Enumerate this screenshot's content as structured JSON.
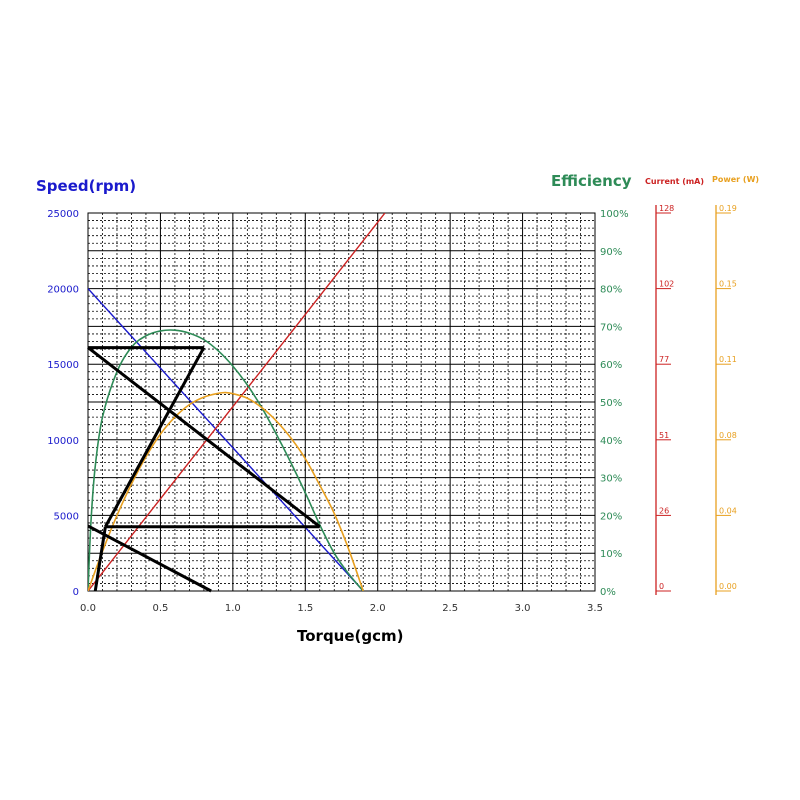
{
  "chart_data": {
    "type": "line",
    "title": "",
    "xlabel": "Torque(gcm)",
    "ylabel_left": "Speed(rpm)",
    "ylabel_efficiency": "Efficiency",
    "ylabel_current": "Current (mA)",
    "ylabel_power": "Power (W)",
    "xlim": [
      0,
      3.5
    ],
    "ylim": [
      0,
      25000
    ],
    "grid": true,
    "x_ticks": [
      "0.0",
      "0.5",
      "1.0",
      "1.5",
      "2.0",
      "2.5",
      "3.0",
      "3.5"
    ],
    "y_ticks_speed": [
      "0",
      "5000",
      "10000",
      "15000",
      "20000",
      "25000"
    ],
    "y_ticks_efficiency": [
      "0%",
      "10%",
      "20%",
      "30%",
      "40%",
      "50%",
      "60%",
      "70%",
      "80%",
      "90%",
      "100%"
    ],
    "y_ticks_current": [
      "0",
      "26",
      "51",
      "77",
      "102",
      "128"
    ],
    "y_ticks_power": [
      "0.00",
      "0.04",
      "0.08",
      "0.11",
      "0.15",
      "0.19"
    ],
    "series": [
      {
        "name": "Speed(rpm)",
        "color": "#1a1acc",
        "x": [
          0,
          1.9
        ],
        "y": [
          20000,
          0
        ]
      },
      {
        "name": "Current (mA)",
        "color": "#cc2222",
        "x": [
          0,
          2.05
        ],
        "y": [
          0,
          25000
        ]
      },
      {
        "name": "Efficiency",
        "color": "#2e8b57",
        "x": [
          0,
          0.02,
          0.05,
          0.1,
          0.2,
          0.3,
          0.4,
          0.5,
          0.6,
          0.7,
          0.8,
          0.9,
          1.0,
          1.1,
          1.2,
          1.3,
          1.4,
          1.5,
          1.6,
          1.7,
          1.8,
          1.9
        ],
        "y_pct": [
          0,
          18,
          33,
          46,
          58,
          64.5,
          67.5,
          68.8,
          69,
          68.2,
          66.5,
          63.5,
          59.5,
          54.5,
          48.5,
          41.5,
          34,
          26,
          17.5,
          10,
          4.5,
          0
        ]
      },
      {
        "name": "Power (W)",
        "color": "#e8a020",
        "x": [
          0,
          0.1,
          0.2,
          0.3,
          0.4,
          0.5,
          0.6,
          0.7,
          0.8,
          0.9,
          0.95,
          1.0,
          1.1,
          1.2,
          1.3,
          1.4,
          1.5,
          1.6,
          1.7,
          1.8,
          1.9
        ],
        "y_pct": [
          0,
          10.5,
          20,
          28.3,
          35.5,
          41.5,
          46,
          49.3,
          51.3,
          52.3,
          52.5,
          52.2,
          51,
          48.5,
          45,
          40.5,
          35,
          28,
          20.5,
          11,
          0
        ]
      }
    ],
    "annotation_lines": {
      "color": "#000000",
      "segments": [
        {
          "x": [
            0,
            0.8
          ],
          "y": [
            16100,
            16100
          ]
        },
        {
          "x": [
            0.8,
            0.12
          ],
          "y": [
            16100,
            4250
          ]
        },
        {
          "x": [
            0,
            1.6
          ],
          "y": [
            16100,
            4250
          ]
        },
        {
          "x": [
            0.12,
            1.6
          ],
          "y": [
            4250,
            4250
          ]
        },
        {
          "x": [
            0,
            0.85
          ],
          "y": [
            4300,
            0
          ]
        },
        {
          "x": [
            0.12,
            0.05
          ],
          "y": [
            4250,
            0
          ]
        }
      ]
    },
    "colors": {
      "speed_axis": "#1a1acc",
      "efficiency_axis": "#2e8b57",
      "current_axis": "#cc2222",
      "power_axis": "#e8a020",
      "grid": "#000000"
    }
  }
}
